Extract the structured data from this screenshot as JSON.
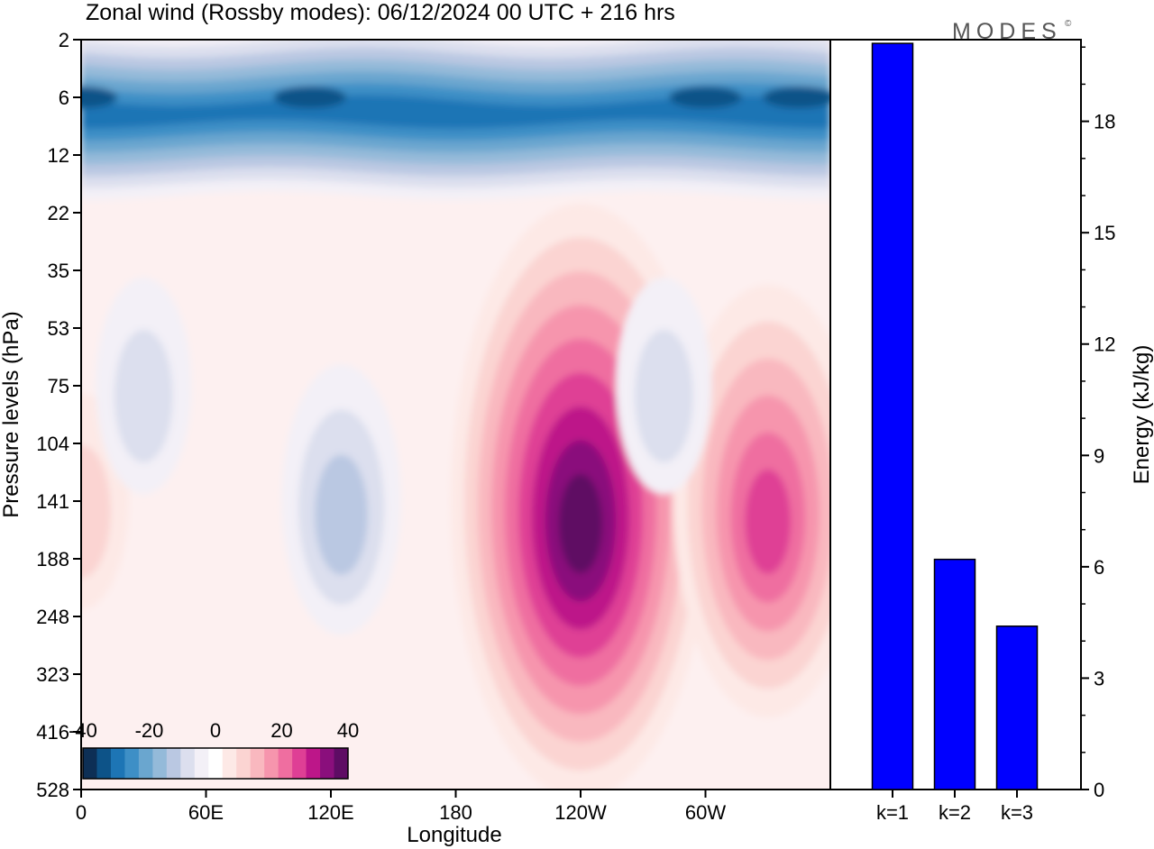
{
  "title": "Zonal wind (Rossby modes):  06/12/2024  00 UTC  + 216 hrs",
  "logo": "MODES",
  "logo_mark": "©",
  "colors": {
    "bar": "#0000ff",
    "palette": [
      "#0d2f55",
      "#0d5388",
      "#1d75b5",
      "#3e8fc6",
      "#6aa6cf",
      "#94bad9",
      "#bac8e2",
      "#dcdfee",
      "#f3f0f7",
      "#ffffff",
      "#fde9e6",
      "#fbd4d2",
      "#f9b8bf",
      "#f695ad",
      "#ef6ea0",
      "#df3f95",
      "#bd1689",
      "#8a0f7c",
      "#5e0c64"
    ],
    "palette_values": [
      -40,
      -35,
      -30,
      -25,
      -20,
      -15,
      -10,
      -5,
      -2.5,
      0,
      2.5,
      5,
      10,
      15,
      20,
      25,
      30,
      35,
      40
    ]
  },
  "chart_data": [
    {
      "type": "heatmap",
      "title": "Zonal wind (Rossby modes):  06/12/2024  00 UTC  + 216 hrs",
      "xlabel": "Longitude",
      "ylabel": "Pressure levels (hPa)",
      "xlim": [
        0,
        360
      ],
      "x_ticks": [
        "0",
        "60E",
        "120E",
        "180",
        "120W",
        "60W"
      ],
      "x_tick_values": [
        0,
        60,
        120,
        180,
        240,
        300
      ],
      "y_ticks": [
        "2",
        "6",
        "12",
        "22",
        "35",
        "53",
        "75",
        "104",
        "141",
        "188",
        "248",
        "323",
        "416",
        "528"
      ],
      "colorbar": {
        "labels": [
          "-40",
          "-20",
          "0",
          "20",
          "40"
        ],
        "range": [
          -40,
          40
        ]
      },
      "features": [
        {
          "kind": "easterly jet core",
          "lon_range": [
            0,
            360
          ],
          "level_range_hPa": [
            2,
            22
          ],
          "value_min": -35
        },
        {
          "kind": "westerly maximum",
          "lon": 240,
          "level_hPa": 141,
          "value": 40
        },
        {
          "kind": "westerly maximum",
          "lon": 330,
          "level_hPa": 141,
          "value": 25
        },
        {
          "kind": "westerly maximum",
          "lon": 0,
          "level_hPa": 141,
          "value": 5
        },
        {
          "kind": "easterly region",
          "lon": 125,
          "level_hPa": 140,
          "value": -10
        },
        {
          "kind": "easterly region",
          "lon": 30,
          "level_hPa": 75,
          "value": -5
        },
        {
          "kind": "easterly region",
          "lon": 280,
          "level_hPa": 75,
          "value": -5
        }
      ]
    },
    {
      "type": "bar",
      "categories": [
        "k=1",
        "k=2",
        "k=3"
      ],
      "values": [
        20.1,
        6.2,
        4.4
      ],
      "ylabel": "Energy (kJ/kg)",
      "ylim": [
        0,
        20
      ],
      "y_ticks": [
        0,
        3,
        6,
        9,
        12,
        15,
        18
      ]
    }
  ]
}
